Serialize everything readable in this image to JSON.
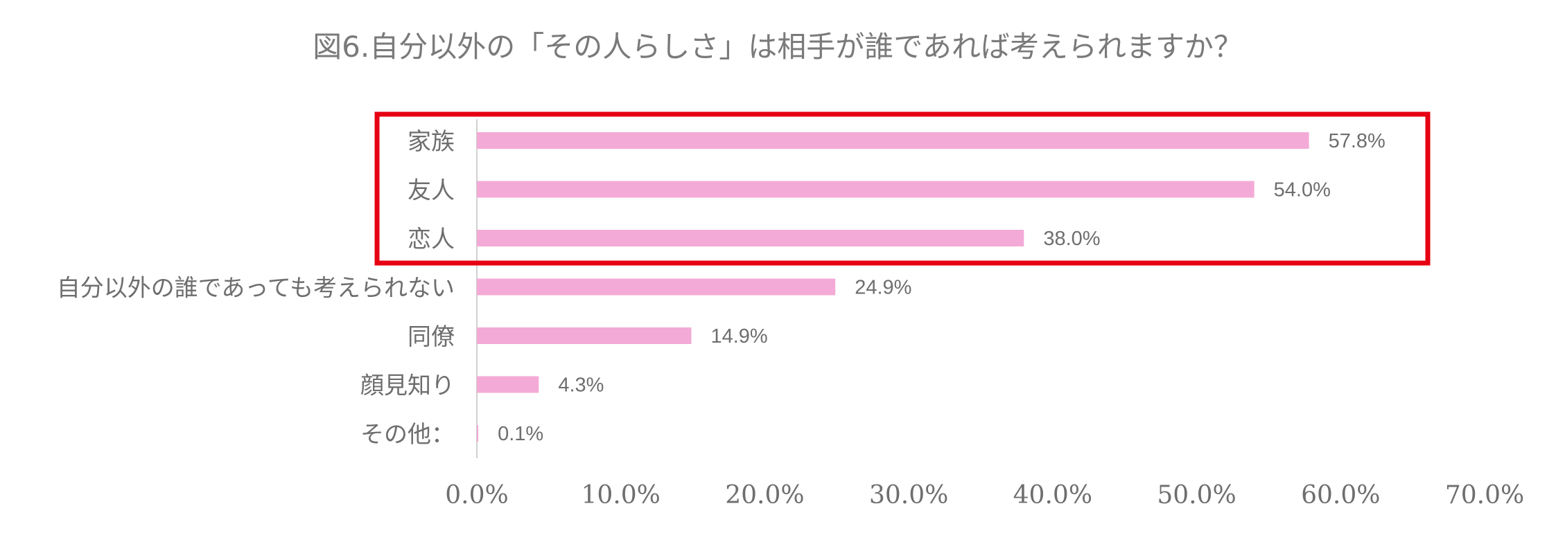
{
  "chart_data": {
    "type": "bar",
    "orientation": "horizontal",
    "title": "図6.自分以外の「その人らしさ」は相手が誰であれば考えられますか？",
    "categories": [
      "家族",
      "友人",
      "恋人",
      "自分以外の誰であっても考えられない",
      "同僚",
      "顔見知り",
      "その他："
    ],
    "values": [
      57.8,
      54.0,
      38.0,
      24.9,
      14.9,
      4.3,
      0.1
    ],
    "value_labels": [
      "57.8%",
      "54.0%",
      "38.0%",
      "24.9%",
      "14.9%",
      "4.3%",
      "0.1%"
    ],
    "xlim": [
      0,
      70
    ],
    "x_ticks": [
      0,
      10,
      20,
      30,
      40,
      50,
      60,
      70
    ],
    "x_tick_labels": [
      "0.0%",
      "10.0%",
      "20.0%",
      "30.0%",
      "40.0%",
      "50.0%",
      "60.0%",
      "70.0%"
    ],
    "xlabel": "",
    "ylabel": "",
    "grid": false,
    "bar_color": "#f4aad6",
    "highlight": {
      "categories": [
        "家族",
        "友人",
        "恋人"
      ],
      "color": "#e60012"
    }
  }
}
